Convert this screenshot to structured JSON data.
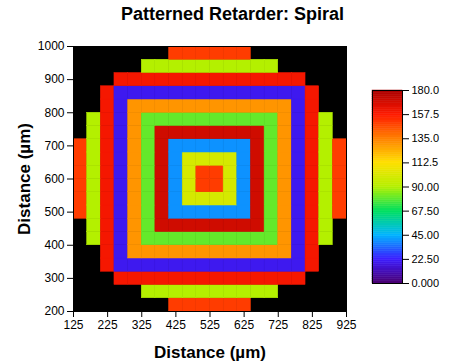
{
  "chart_data": {
    "type": "heatmap",
    "title": "Patterned Retarder: Spiral",
    "x_label": "Distance (µm)",
    "y_label": "Distance (µm)",
    "x": [
      145,
      185,
      225,
      265,
      305,
      345,
      385,
      425,
      465,
      505,
      545,
      585,
      625,
      665,
      705,
      745,
      785,
      825,
      865,
      905
    ],
    "y": [
      220,
      260,
      300,
      340,
      380,
      420,
      460,
      500,
      540,
      580,
      620,
      660,
      700,
      740,
      780,
      820,
      860,
      900,
      940,
      980
    ],
    "z": [
      [
        null,
        null,
        null,
        null,
        null,
        null,
        null,
        150,
        150,
        150,
        150,
        150,
        150,
        null,
        null,
        null,
        null,
        null,
        null,
        null
      ],
      [
        null,
        null,
        null,
        null,
        null,
        90,
        90,
        90,
        90,
        90,
        90,
        90,
        90,
        90,
        90,
        null,
        null,
        null,
        null,
        null
      ],
      [
        null,
        null,
        null,
        160,
        160,
        160,
        160,
        160,
        160,
        160,
        160,
        160,
        160,
        160,
        160,
        160,
        160,
        null,
        null,
        null
      ],
      [
        null,
        null,
        160,
        20,
        20,
        20,
        20,
        20,
        20,
        20,
        20,
        20,
        20,
        20,
        20,
        20,
        20,
        160,
        null,
        null
      ],
      [
        null,
        null,
        160,
        20,
        130,
        130,
        130,
        130,
        130,
        130,
        130,
        130,
        130,
        130,
        130,
        130,
        20,
        160,
        null,
        null
      ],
      [
        null,
        90,
        160,
        20,
        130,
        80,
        80,
        80,
        80,
        80,
        80,
        80,
        80,
        80,
        80,
        130,
        20,
        160,
        90,
        null
      ],
      [
        null,
        90,
        160,
        20,
        130,
        80,
        170,
        170,
        170,
        170,
        170,
        170,
        170,
        170,
        80,
        130,
        20,
        160,
        90,
        null
      ],
      [
        150,
        90,
        160,
        20,
        130,
        80,
        170,
        40,
        40,
        40,
        40,
        40,
        40,
        170,
        80,
        130,
        20,
        160,
        90,
        150
      ],
      [
        150,
        90,
        160,
        20,
        130,
        80,
        170,
        40,
        100,
        100,
        100,
        100,
        40,
        170,
        80,
        130,
        20,
        160,
        90,
        150
      ],
      [
        150,
        90,
        160,
        20,
        130,
        80,
        170,
        40,
        100,
        150,
        150,
        100,
        40,
        170,
        80,
        130,
        20,
        160,
        90,
        150
      ],
      [
        150,
        90,
        160,
        20,
        130,
        80,
        170,
        40,
        100,
        150,
        150,
        100,
        40,
        170,
        80,
        130,
        20,
        160,
        90,
        150
      ],
      [
        150,
        90,
        160,
        20,
        130,
        80,
        170,
        40,
        100,
        100,
        100,
        100,
        40,
        170,
        80,
        130,
        20,
        160,
        90,
        150
      ],
      [
        150,
        90,
        160,
        20,
        130,
        80,
        170,
        40,
        40,
        40,
        40,
        40,
        40,
        170,
        80,
        130,
        20,
        160,
        90,
        150
      ],
      [
        null,
        90,
        160,
        20,
        130,
        80,
        170,
        170,
        170,
        170,
        170,
        170,
        170,
        170,
        80,
        130,
        20,
        160,
        90,
        null
      ],
      [
        null,
        90,
        160,
        20,
        130,
        80,
        80,
        80,
        80,
        80,
        80,
        80,
        80,
        80,
        80,
        130,
        20,
        160,
        90,
        null
      ],
      [
        null,
        null,
        160,
        20,
        130,
        130,
        130,
        130,
        130,
        130,
        130,
        130,
        130,
        130,
        130,
        130,
        20,
        160,
        null,
        null
      ],
      [
        null,
        null,
        160,
        20,
        20,
        20,
        20,
        20,
        20,
        20,
        20,
        20,
        20,
        20,
        20,
        20,
        20,
        160,
        null,
        null
      ],
      [
        null,
        null,
        null,
        160,
        160,
        160,
        160,
        160,
        160,
        160,
        160,
        160,
        160,
        160,
        160,
        160,
        160,
        null,
        null,
        null
      ],
      [
        null,
        null,
        null,
        null,
        null,
        90,
        90,
        90,
        90,
        90,
        90,
        90,
        90,
        90,
        90,
        null,
        null,
        null,
        null,
        null
      ],
      [
        null,
        null,
        null,
        null,
        null,
        null,
        null,
        150,
        150,
        150,
        150,
        150,
        150,
        null,
        null,
        null,
        null,
        null,
        null,
        null
      ]
    ],
    "xlim": [
      125,
      925
    ],
    "ylim": [
      200,
      1000
    ],
    "xticks": [
      125,
      225,
      325,
      425,
      525,
      625,
      725,
      825,
      925
    ],
    "yticks": [
      200,
      300,
      400,
      500,
      600,
      700,
      800,
      900,
      1000
    ],
    "colorbar_range": [
      0,
      180
    ],
    "colorbar_ticks": [
      {
        "value": 0,
        "label": "0.000"
      },
      {
        "value": 22.5,
        "label": "22.50"
      },
      {
        "value": 45,
        "label": "45.00"
      },
      {
        "value": 67.5,
        "label": "67.50"
      },
      {
        "value": 90,
        "label": "90.00"
      },
      {
        "value": 112.5,
        "label": "112.5"
      },
      {
        "value": 135,
        "label": "135.0"
      },
      {
        "value": 157.5,
        "label": "157.5"
      },
      {
        "value": 180,
        "label": "180.0"
      }
    ]
  }
}
